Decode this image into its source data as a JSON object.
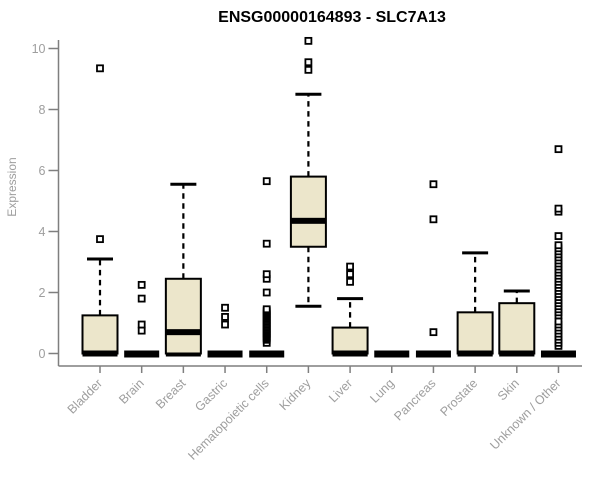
{
  "chart_data": {
    "type": "boxplot",
    "title": "ENSG00000164893 - SLC7A13",
    "ylabel": "Expression",
    "xlabel": "",
    "ylim": [
      0,
      10.3
    ],
    "yticks": [
      0,
      2,
      4,
      6,
      8,
      10
    ],
    "grid": false,
    "legend": false,
    "colors": {
      "box_fill": "#ece6cb",
      "box_border": "#000000",
      "median": "#000000",
      "outlier_stroke": "#000000",
      "axis": "#7f7f7f",
      "labels": "#9e9e9e",
      "title": "#000000"
    },
    "categories": [
      "Bladder",
      "Brain",
      "Breast",
      "Gastric",
      "Hematopoietic cells",
      "Kidney",
      "Liver",
      "Lung",
      "Pancreas",
      "Prostate",
      "Skin",
      "Unknown / Other"
    ],
    "series": [
      {
        "category": "Bladder",
        "whisker_low": 0,
        "q1": 0,
        "median": 0,
        "q3": 1.25,
        "whisker_high": 3.1,
        "outliers": [
          3.75,
          9.35
        ]
      },
      {
        "category": "Brain",
        "whisker_low": 0,
        "q1": 0,
        "median": 0,
        "q3": 0,
        "whisker_high": 0,
        "outliers": [
          0.75,
          0.95,
          1.8,
          2.25
        ]
      },
      {
        "category": "Breast",
        "whisker_low": 0,
        "q1": 0,
        "median": 0.7,
        "q3": 2.45,
        "whisker_high": 5.55,
        "outliers": []
      },
      {
        "category": "Gastric",
        "whisker_low": 0,
        "q1": 0,
        "median": 0,
        "q3": 0,
        "whisker_high": 0,
        "outliers": [
          0.95,
          1.2,
          1.5
        ]
      },
      {
        "category": "Hematopoietic cells",
        "whisker_low": 0,
        "q1": 0,
        "median": 0,
        "q3": 0,
        "whisker_high": 0,
        "outliers": [
          0.35,
          0.45,
          0.5,
          0.55,
          0.6,
          0.65,
          0.7,
          0.75,
          0.8,
          0.85,
          0.9,
          0.95,
          1.0,
          1.05,
          1.1,
          1.15,
          1.2,
          1.25,
          1.3,
          1.35,
          1.4,
          1.45,
          2.0,
          2.45,
          2.6,
          3.6,
          5.65
        ]
      },
      {
        "category": "Kidney",
        "whisker_low": 1.55,
        "q1": 3.5,
        "median": 4.35,
        "q3": 5.8,
        "whisker_high": 8.5,
        "outliers": [
          9.3,
          9.55,
          10.25
        ]
      },
      {
        "category": "Liver",
        "whisker_low": 0,
        "q1": 0,
        "median": 0,
        "q3": 0.85,
        "whisker_high": 1.8,
        "outliers": [
          2.35,
          2.6,
          2.85
        ]
      },
      {
        "category": "Lung",
        "whisker_low": 0,
        "q1": 0,
        "median": 0,
        "q3": 0,
        "whisker_high": 0,
        "outliers": []
      },
      {
        "category": "Pancreas",
        "whisker_low": 0,
        "q1": 0,
        "median": 0,
        "q3": 0,
        "whisker_high": 0,
        "outliers": [
          0.7,
          4.4,
          5.55
        ]
      },
      {
        "category": "Prostate",
        "whisker_low": 0,
        "q1": 0,
        "median": 0,
        "q3": 1.35,
        "whisker_high": 3.3,
        "outliers": []
      },
      {
        "category": "Skin",
        "whisker_low": 0,
        "q1": 0,
        "median": 0,
        "q3": 1.65,
        "whisker_high": 2.05,
        "outliers": []
      },
      {
        "category": "Unknown / Other",
        "whisker_low": 0,
        "q1": 0,
        "median": 0,
        "q3": 0,
        "whisker_high": 0,
        "outliers": [
          0.25,
          0.35,
          0.45,
          0.55,
          0.65,
          0.75,
          0.85,
          0.95,
          1.05,
          1.25,
          1.35,
          1.45,
          1.55,
          1.65,
          1.75,
          1.85,
          1.95,
          2.05,
          2.15,
          2.25,
          2.35,
          2.45,
          2.55,
          2.65,
          2.75,
          2.85,
          2.95,
          3.05,
          3.15,
          3.25,
          3.35,
          3.45,
          3.55,
          3.85,
          4.65,
          4.75,
          6.7
        ]
      }
    ]
  }
}
